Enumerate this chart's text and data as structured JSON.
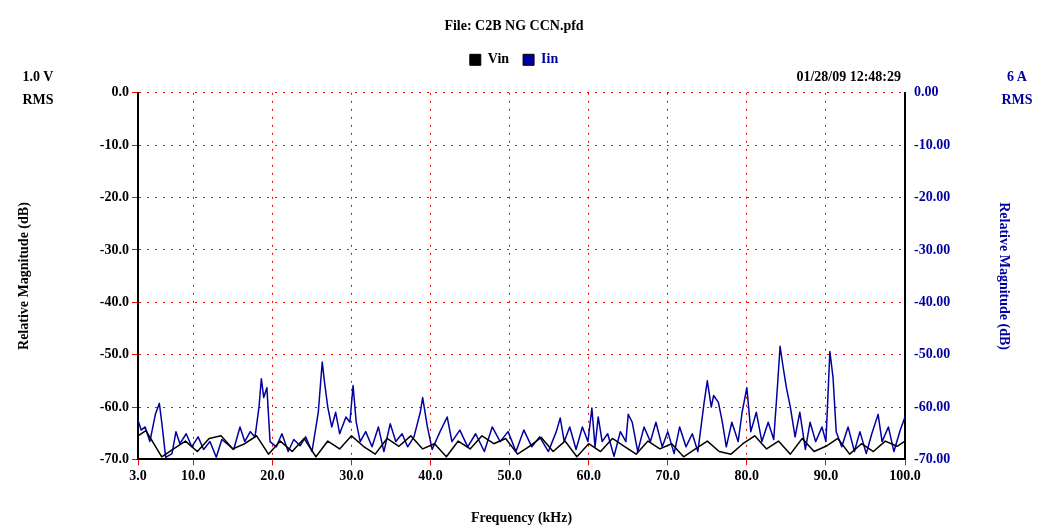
{
  "chart_data": {
    "type": "line",
    "title": "File: C2B NG CCN.pfd",
    "xlabel": "Frequency (kHz)",
    "ylabel": "Relative Magnitude (dB)",
    "y2label": "Relative Magnitude (dB)",
    "annotations": [
      "1.0 V\nRMS",
      "01/28/09 12:48:29",
      "6 A\nRMS"
    ],
    "legend": "top",
    "grid": true,
    "marker": "none",
    "line_style": "solid",
    "xlim": [
      3,
      100
    ],
    "xticks": [
      {
        "value": 3,
        "label": "3.0"
      },
      {
        "value": 10,
        "label": "10.0"
      },
      {
        "value": 20,
        "label": "20.0"
      },
      {
        "value": 30,
        "label": "30.0"
      },
      {
        "value": 40,
        "label": "40.0"
      },
      {
        "value": 50,
        "label": "50.0"
      },
      {
        "value": 60,
        "label": "60.0"
      },
      {
        "value": 70,
        "label": "70.0"
      },
      {
        "value": 80,
        "label": "80.0"
      },
      {
        "value": 90,
        "label": "90.0"
      },
      {
        "value": 100,
        "label": "100.0"
      }
    ],
    "ylim": [
      -70,
      0
    ],
    "yticks": [
      {
        "value": 0,
        "label": "0.0"
      },
      {
        "value": -10,
        "label": "-10.0"
      },
      {
        "value": -20,
        "label": "-20.0"
      },
      {
        "value": -30,
        "label": "-30.0"
      },
      {
        "value": -40,
        "label": "-40.0"
      },
      {
        "value": -50,
        "label": "-50.0"
      },
      {
        "value": -60,
        "label": "-60.0"
      },
      {
        "value": -70,
        "label": "-70.0"
      }
    ],
    "y2lim": [
      -70,
      0
    ],
    "y2ticks": [
      {
        "value": 0,
        "label": "0.00"
      },
      {
        "value": -10,
        "label": "-10.00"
      },
      {
        "value": -20,
        "label": "-20.00"
      },
      {
        "value": -30,
        "label": "-30.00"
      },
      {
        "value": -40,
        "label": "-40.00"
      },
      {
        "value": -50,
        "label": "-50.00"
      },
      {
        "value": -60,
        "label": "-60.00"
      },
      {
        "value": -70,
        "label": "-70.00"
      }
    ],
    "series": [
      {
        "name": "Vin",
        "color": "#000000",
        "x": [
          3,
          4,
          5,
          6,
          7.5,
          9,
          10.5,
          12,
          13.5,
          15,
          16.5,
          18,
          19.5,
          21,
          22.5,
          24,
          25.5,
          27,
          28.5,
          30,
          31.5,
          33,
          34.5,
          36,
          37.5,
          39,
          40.5,
          42,
          43.5,
          45,
          46.5,
          48,
          49.5,
          51,
          52.5,
          54,
          55.5,
          57,
          58.5,
          60,
          61.5,
          63,
          64.5,
          66,
          67.5,
          69,
          70.5,
          72,
          73.5,
          75,
          76.5,
          78,
          79.5,
          81,
          82.5,
          84,
          85.5,
          87,
          88.5,
          90,
          91.5,
          93,
          94.5,
          96,
          97.5,
          99,
          100
        ],
        "values": [
          -65.5,
          -64.5,
          -67,
          -69.5,
          -68,
          -66.5,
          -68.5,
          -66,
          -65.5,
          -68,
          -67,
          -65.5,
          -69,
          -66.5,
          -68.5,
          -66,
          -69.5,
          -66.5,
          -68,
          -65.5,
          -67.5,
          -69,
          -66,
          -67.5,
          -65.5,
          -68,
          -67,
          -69.5,
          -66.5,
          -68,
          -65.5,
          -67,
          -66,
          -69,
          -67.5,
          -65.8,
          -68.5,
          -66.5,
          -69.5,
          -67,
          -68.5,
          -66,
          -67.5,
          -69,
          -66.5,
          -68,
          -67,
          -69.5,
          -68,
          -66.5,
          -68.5,
          -69,
          -67,
          -65.5,
          -68,
          -66.5,
          -69,
          -66,
          -68.5,
          -67.5,
          -66,
          -69,
          -67,
          -68.5,
          -66.5,
          -67.5,
          -66.5
        ]
      },
      {
        "name": "Iin",
        "color": "#0000a0",
        "axis": "y2",
        "x": [
          3.0,
          3.4,
          3.9,
          4.5,
          5.2,
          5.7,
          6.0,
          6.5,
          7.3,
          7.8,
          8.3,
          9.1,
          9.8,
          10.6,
          11.3,
          12.1,
          12.9,
          13.6,
          14.4,
          15.1,
          15.9,
          16.5,
          17.2,
          17.8,
          18.3,
          18.6,
          18.9,
          19.3,
          19.7,
          20.5,
          21.2,
          22.0,
          22.7,
          23.5,
          24.2,
          25.0,
          25.8,
          26.3,
          26.6,
          27.0,
          27.5,
          28.0,
          28.5,
          29.3,
          29.8,
          30.2,
          30.6,
          31.1,
          31.8,
          32.6,
          33.4,
          34.1,
          34.9,
          35.6,
          36.4,
          37.1,
          37.9,
          38.7,
          39.0,
          39.6,
          40.2,
          41.2,
          42.1,
          42.7,
          43.7,
          44.7,
          45.7,
          46.8,
          47.8,
          48.8,
          49.8,
          50.8,
          51.8,
          52.8,
          53.8,
          54.9,
          55.9,
          56.4,
          56.9,
          57.6,
          58.4,
          59.2,
          59.9,
          60.4,
          60.8,
          61.2,
          61.7,
          62.4,
          63.2,
          64.0,
          64.7,
          65.0,
          65.5,
          66.2,
          67.0,
          67.8,
          68.5,
          69.3,
          70.0,
          70.8,
          71.5,
          72.3,
          73.1,
          73.8,
          74.6,
          75.0,
          75.5,
          75.8,
          76.4,
          76.9,
          77.4,
          78.1,
          78.9,
          79.4,
          80.0,
          80.5,
          81.2,
          81.9,
          82.7,
          83.4,
          83.9,
          84.2,
          84.6,
          85.0,
          85.5,
          86.1,
          86.7,
          87.4,
          88.0,
          88.7,
          89.5,
          90.0,
          90.5,
          90.9,
          91.3,
          92.0,
          92.8,
          93.6,
          94.3,
          95.1,
          95.8,
          96.6,
          97.1,
          97.9,
          98.6,
          99.4,
          100.0
        ],
        "values": [
          -62.5,
          -64.4,
          -63.8,
          -66.6,
          -61.4,
          -59.3,
          -62.9,
          -69.6,
          -68.9,
          -64.7,
          -67.0,
          -65.1,
          -67.6,
          -65.7,
          -68.1,
          -66.6,
          -69.6,
          -66.2,
          -67.2,
          -68.1,
          -63.8,
          -66.6,
          -64.7,
          -65.7,
          -60.0,
          -54.6,
          -58.2,
          -56.3,
          -66.6,
          -67.6,
          -65.1,
          -68.5,
          -66.2,
          -67.4,
          -65.7,
          -68.5,
          -61.0,
          -51.4,
          -55.4,
          -60.0,
          -63.8,
          -61.0,
          -65.1,
          -61.9,
          -62.9,
          -55.9,
          -62.9,
          -66.6,
          -64.7,
          -67.6,
          -63.8,
          -68.5,
          -63.2,
          -66.6,
          -65.1,
          -67.6,
          -65.7,
          -61.0,
          -58.2,
          -63.8,
          -68.1,
          -64.7,
          -61.9,
          -66.6,
          -64.4,
          -67.6,
          -65.1,
          -68.5,
          -63.8,
          -66.6,
          -64.7,
          -68.5,
          -64.4,
          -67.6,
          -65.7,
          -68.5,
          -64.7,
          -62.1,
          -66.6,
          -63.8,
          -68.1,
          -63.8,
          -66.6,
          -60.2,
          -67.6,
          -61.9,
          -66.6,
          -65.1,
          -69.4,
          -64.7,
          -66.6,
          -61.4,
          -62.9,
          -68.5,
          -63.8,
          -66.6,
          -62.9,
          -67.6,
          -64.7,
          -68.9,
          -63.8,
          -67.6,
          -65.1,
          -68.5,
          -59.1,
          -55.0,
          -60.0,
          -57.8,
          -59.1,
          -62.9,
          -67.6,
          -62.9,
          -66.6,
          -61.0,
          -56.3,
          -64.7,
          -61.0,
          -66.6,
          -62.9,
          -66.2,
          -55.4,
          -48.4,
          -52.5,
          -56.3,
          -60.0,
          -65.7,
          -61.0,
          -68.1,
          -62.9,
          -66.6,
          -63.8,
          -66.6,
          -49.4,
          -54.4,
          -64.7,
          -67.6,
          -63.8,
          -68.5,
          -64.7,
          -68.9,
          -65.1,
          -61.4,
          -66.6,
          -63.8,
          -68.5,
          -64.4,
          -61.9
        ]
      }
    ]
  }
}
